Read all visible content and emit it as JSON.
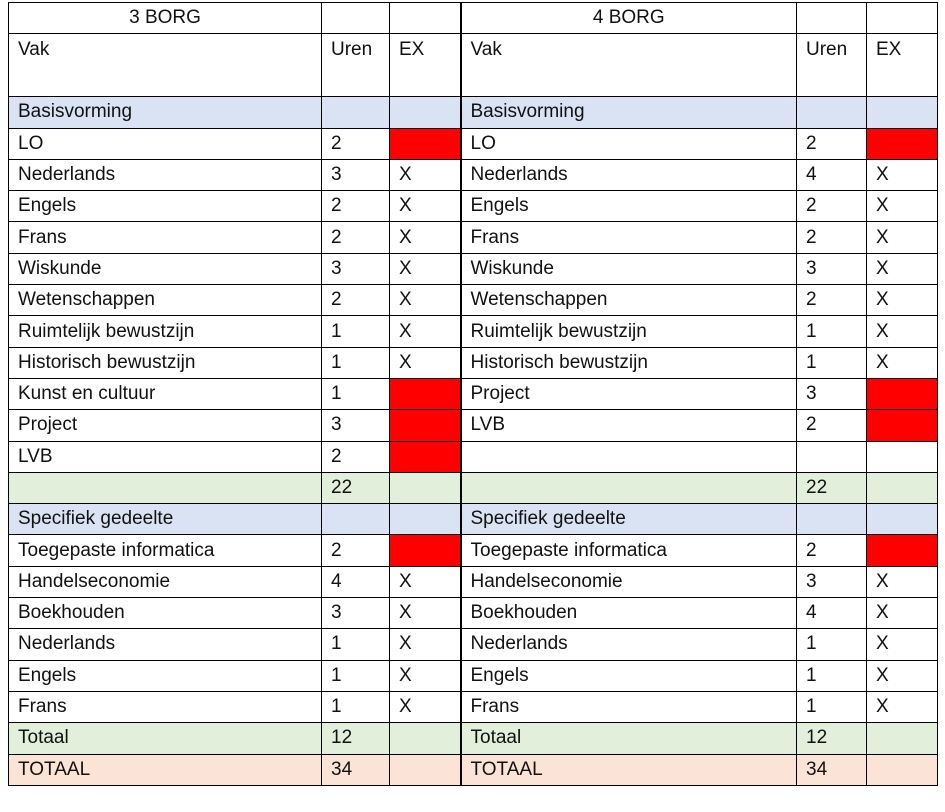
{
  "colors": {
    "section": "#dae3f3",
    "subtotal": "#e2efda",
    "grandtotal": "#fbe4d5",
    "not_exam": "#ff0000"
  },
  "headers": {
    "vak": "Vak",
    "uren": "Uren",
    "ex": "EX"
  },
  "tables": [
    {
      "title": "3 BORG",
      "rows": [
        {
          "kind": "section",
          "vak": "Basisvorming",
          "uren": "",
          "ex": ""
        },
        {
          "kind": "subject",
          "vak": "LO",
          "uren": "2",
          "ex": "red"
        },
        {
          "kind": "subject",
          "vak": "Nederlands",
          "uren": "3",
          "ex": "X"
        },
        {
          "kind": "subject",
          "vak": "Engels",
          "uren": "2",
          "ex": "X"
        },
        {
          "kind": "subject",
          "vak": "Frans",
          "uren": "2",
          "ex": "X"
        },
        {
          "kind": "subject",
          "vak": "Wiskunde",
          "uren": "3",
          "ex": "X"
        },
        {
          "kind": "subject",
          "vak": "Wetenschappen",
          "uren": "2",
          "ex": "X"
        },
        {
          "kind": "subject",
          "vak": "Ruimtelijk bewustzijn",
          "uren": "1",
          "ex": "X"
        },
        {
          "kind": "subject",
          "vak": "Historisch bewustzijn",
          "uren": "1",
          "ex": "X"
        },
        {
          "kind": "subject",
          "vak": "Kunst en cultuur",
          "uren": "1",
          "ex": "red"
        },
        {
          "kind": "subject",
          "vak": "Project",
          "uren": "3",
          "ex": "red"
        },
        {
          "kind": "subject",
          "vak": "LVB",
          "uren": "2",
          "ex": "red"
        },
        {
          "kind": "subtotal",
          "vak": "",
          "uren": "22",
          "ex": ""
        },
        {
          "kind": "section",
          "vak": "Specifiek gedeelte",
          "uren": "",
          "ex": ""
        },
        {
          "kind": "subject",
          "vak": "Toegepaste informatica",
          "uren": "2",
          "ex": "red"
        },
        {
          "kind": "subject",
          "vak": "Handelseconomie",
          "uren": "4",
          "ex": "X"
        },
        {
          "kind": "subject",
          "vak": "Boekhouden",
          "uren": "3",
          "ex": "X"
        },
        {
          "kind": "subject",
          "vak": "Nederlands",
          "uren": "1",
          "ex": "X"
        },
        {
          "kind": "subject",
          "vak": "Engels",
          "uren": "1",
          "ex": "X"
        },
        {
          "kind": "subject",
          "vak": "Frans",
          "uren": "1",
          "ex": "X"
        },
        {
          "kind": "subtotal",
          "vak": "Totaal",
          "uren": "12",
          "ex": ""
        },
        {
          "kind": "grandtotal",
          "vak": "TOTAAL",
          "uren": "34",
          "ex": ""
        }
      ]
    },
    {
      "title": "4 BORG",
      "rows": [
        {
          "kind": "section",
          "vak": "Basisvorming",
          "uren": "",
          "ex": ""
        },
        {
          "kind": "subject",
          "vak": "LO",
          "uren": "2",
          "ex": "red"
        },
        {
          "kind": "subject",
          "vak": "Nederlands",
          "uren": "4",
          "ex": "X"
        },
        {
          "kind": "subject",
          "vak": "Engels",
          "uren": "2",
          "ex": "X"
        },
        {
          "kind": "subject",
          "vak": "Frans",
          "uren": "2",
          "ex": "X"
        },
        {
          "kind": "subject",
          "vak": "Wiskunde",
          "uren": "3",
          "ex": "X"
        },
        {
          "kind": "subject",
          "vak": "Wetenschappen",
          "uren": "2",
          "ex": "X"
        },
        {
          "kind": "subject",
          "vak": "Ruimtelijk bewustzijn",
          "uren": "1",
          "ex": "X"
        },
        {
          "kind": "subject",
          "vak": "Historisch bewustzijn",
          "uren": "1",
          "ex": "X"
        },
        {
          "kind": "subject",
          "vak": "Project",
          "uren": "3",
          "ex": "red"
        },
        {
          "kind": "subject",
          "vak": "LVB",
          "uren": "2",
          "ex": "red"
        },
        {
          "kind": "blank",
          "vak": "",
          "uren": "",
          "ex": ""
        },
        {
          "kind": "subtotal",
          "vak": "",
          "uren": "22",
          "ex": ""
        },
        {
          "kind": "section",
          "vak": "Specifiek gedeelte",
          "uren": "",
          "ex": ""
        },
        {
          "kind": "subject",
          "vak": "Toegepaste informatica",
          "uren": "2",
          "ex": "red"
        },
        {
          "kind": "subject",
          "vak": "Handelseconomie",
          "uren": "3",
          "ex": "X"
        },
        {
          "kind": "subject",
          "vak": "Boekhouden",
          "uren": "4",
          "ex": "X"
        },
        {
          "kind": "subject",
          "vak": "Nederlands",
          "uren": "1",
          "ex": "X"
        },
        {
          "kind": "subject",
          "vak": "Engels",
          "uren": "1",
          "ex": "X"
        },
        {
          "kind": "subject",
          "vak": "Frans",
          "uren": "1",
          "ex": "X"
        },
        {
          "kind": "subtotal",
          "vak": "Totaal",
          "uren": "12",
          "ex": ""
        },
        {
          "kind": "grandtotal",
          "vak": "TOTAAL",
          "uren": "34",
          "ex": ""
        }
      ]
    }
  ]
}
